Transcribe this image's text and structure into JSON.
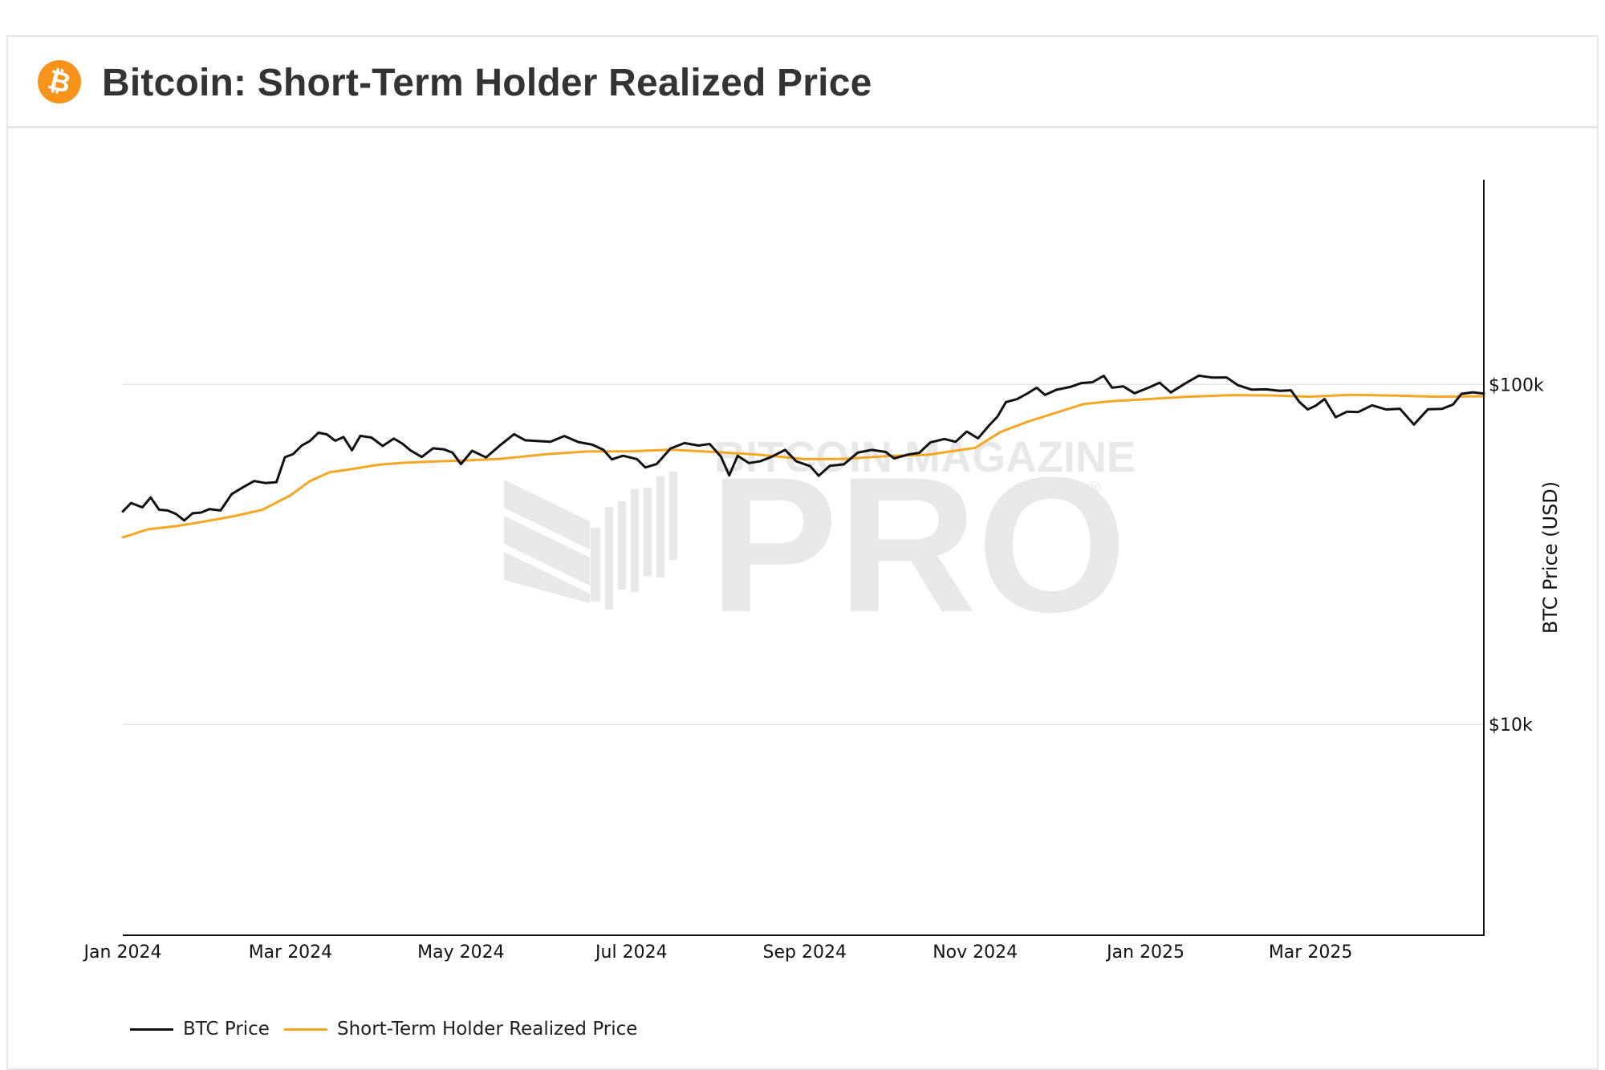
{
  "header": {
    "logo_glyph": "₿",
    "logo_icon": "bitcoin-logo-icon",
    "title": "Bitcoin: Short-Term Holder Realized Price"
  },
  "watermark": {
    "line1": "BITCOIN MAGAZINE",
    "line2": "PRO",
    "mark": "®"
  },
  "colors": {
    "btc_price": "#111111",
    "sth_price": "#f5a623",
    "logo": "#f7931a",
    "watermark": "#e8e8e8"
  },
  "chart_data": {
    "type": "line",
    "xlabel": "",
    "ylabel": "BTC Price (USD)",
    "yscale": "log",
    "ylim": [
      2400,
      400000
    ],
    "xlim": [
      "2024-01-01",
      "2025-05-02"
    ],
    "grid": "horizontal",
    "legend_position": "bottom-left",
    "x_ticks": [
      "Jan 2024",
      "Mar 2024",
      "May 2024",
      "Jul 2024",
      "Sep 2024",
      "Nov 2024",
      "Jan 2025",
      "Mar 2025"
    ],
    "y_ticks": [
      {
        "value": 10000,
        "label": "$10k"
      },
      {
        "value": 100000,
        "label": "$100k"
      }
    ],
    "series": [
      {
        "name": "BTC Price",
        "color": "#111111",
        "x": [
          "2024-01-01",
          "2024-01-04",
          "2024-01-08",
          "2024-01-11",
          "2024-01-14",
          "2024-01-17",
          "2024-01-20",
          "2024-01-23",
          "2024-01-26",
          "2024-01-29",
          "2024-02-01",
          "2024-02-05",
          "2024-02-09",
          "2024-02-13",
          "2024-02-17",
          "2024-02-21",
          "2024-02-25",
          "2024-02-28",
          "2024-03-02",
          "2024-03-05",
          "2024-03-08",
          "2024-03-11",
          "2024-03-14",
          "2024-03-17",
          "2024-03-20",
          "2024-03-23",
          "2024-03-26",
          "2024-03-30",
          "2024-04-03",
          "2024-04-07",
          "2024-04-10",
          "2024-04-13",
          "2024-04-17",
          "2024-04-21",
          "2024-04-25",
          "2024-04-28",
          "2024-05-01",
          "2024-05-05",
          "2024-05-10",
          "2024-05-15",
          "2024-05-20",
          "2024-05-24",
          "2024-05-28",
          "2024-06-02",
          "2024-06-07",
          "2024-06-12",
          "2024-06-17",
          "2024-06-21",
          "2024-06-24",
          "2024-06-28",
          "2024-07-03",
          "2024-07-06",
          "2024-07-10",
          "2024-07-15",
          "2024-07-20",
          "2024-07-25",
          "2024-07-29",
          "2024-08-02",
          "2024-08-05",
          "2024-08-08",
          "2024-08-12",
          "2024-08-16",
          "2024-08-20",
          "2024-08-25",
          "2024-08-29",
          "2024-09-03",
          "2024-09-06",
          "2024-09-10",
          "2024-09-15",
          "2024-09-20",
          "2024-09-25",
          "2024-09-30",
          "2024-10-03",
          "2024-10-08",
          "2024-10-12",
          "2024-10-16",
          "2024-10-21",
          "2024-10-25",
          "2024-10-29",
          "2024-11-02",
          "2024-11-06",
          "2024-11-09",
          "2024-11-12",
          "2024-11-16",
          "2024-11-20",
          "2024-11-23",
          "2024-11-26",
          "2024-11-30",
          "2024-12-05",
          "2024-12-09",
          "2024-12-13",
          "2024-12-17",
          "2024-12-20",
          "2024-12-24",
          "2024-12-28",
          "2025-01-02",
          "2025-01-06",
          "2025-01-10",
          "2025-01-15",
          "2025-01-20",
          "2025-01-25",
          "2025-01-30",
          "2025-02-03",
          "2025-02-08",
          "2025-02-13",
          "2025-02-18",
          "2025-02-22",
          "2025-02-25",
          "2025-02-28",
          "2025-03-03",
          "2025-03-06",
          "2025-03-10",
          "2025-03-14",
          "2025-03-18",
          "2025-03-23",
          "2025-03-28",
          "2025-04-02",
          "2025-04-07",
          "2025-04-12",
          "2025-04-17",
          "2025-04-21",
          "2025-04-24",
          "2025-04-28",
          "2025-05-02"
        ],
        "y": [
          42300,
          44800,
          43500,
          46500,
          42800,
          42600,
          41600,
          39800,
          41800,
          42000,
          43000,
          42600,
          47600,
          49800,
          52000,
          51300,
          51600,
          61100,
          62400,
          66100,
          68200,
          72100,
          71300,
          68300,
          70000,
          64000,
          70600,
          69800,
          65900,
          69300,
          67000,
          63900,
          61200,
          64900,
          64400,
          63000,
          58300,
          63800,
          61000,
          66200,
          71400,
          68500,
          68200,
          67800,
          70500,
          67700,
          66500,
          64200,
          60200,
          61700,
          60300,
          57000,
          58300,
          64800,
          67200,
          66100,
          66800,
          61400,
          54000,
          61700,
          58700,
          59400,
          61200,
          64200,
          59400,
          57500,
          53900,
          57600,
          58200,
          63000,
          64200,
          63300,
          60600,
          62200,
          62900,
          67600,
          69100,
          67800,
          72700,
          69400,
          75800,
          80400,
          88700,
          90500,
          94400,
          97800,
          93100,
          96400,
          98300,
          100900,
          101500,
          106000,
          97800,
          98700,
          94200,
          97800,
          101200,
          94700,
          100500,
          106100,
          104700,
          104800,
          99500,
          96500,
          96700,
          95800,
          96100,
          88700,
          84400,
          86700,
          90600,
          80100,
          83100,
          82900,
          86800,
          84400,
          84800,
          76200,
          84500,
          84700,
          87300,
          93800,
          94800,
          94000
        ]
      },
      {
        "name": "Short-Term Holder Realized Price",
        "color": "#f5a623",
        "x": [
          "2024-01-01",
          "2024-01-10",
          "2024-01-20",
          "2024-01-30",
          "2024-02-10",
          "2024-02-20",
          "2024-03-01",
          "2024-03-08",
          "2024-03-15",
          "2024-03-22",
          "2024-04-01",
          "2024-04-10",
          "2024-04-20",
          "2024-05-01",
          "2024-05-15",
          "2024-06-01",
          "2024-06-15",
          "2024-07-01",
          "2024-07-15",
          "2024-08-01",
          "2024-08-15",
          "2024-09-01",
          "2024-09-15",
          "2024-10-01",
          "2024-10-15",
          "2024-11-01",
          "2024-11-10",
          "2024-11-20",
          "2024-12-01",
          "2024-12-10",
          "2024-12-20",
          "2025-01-01",
          "2025-01-15",
          "2025-02-01",
          "2025-02-15",
          "2025-03-01",
          "2025-03-15",
          "2025-04-01",
          "2025-04-15",
          "2025-05-02"
        ],
        "y": [
          35500,
          37500,
          38300,
          39500,
          41000,
          42800,
          47200,
          52000,
          55200,
          56200,
          58000,
          58800,
          59300,
          59700,
          60400,
          62400,
          63500,
          63600,
          64300,
          63200,
          62200,
          60300,
          60400,
          61600,
          62100,
          65100,
          72400,
          77800,
          83100,
          87600,
          89300,
          90400,
          91900,
          93000,
          92800,
          92000,
          93200,
          92700,
          92000,
          92300
        ]
      }
    ]
  }
}
